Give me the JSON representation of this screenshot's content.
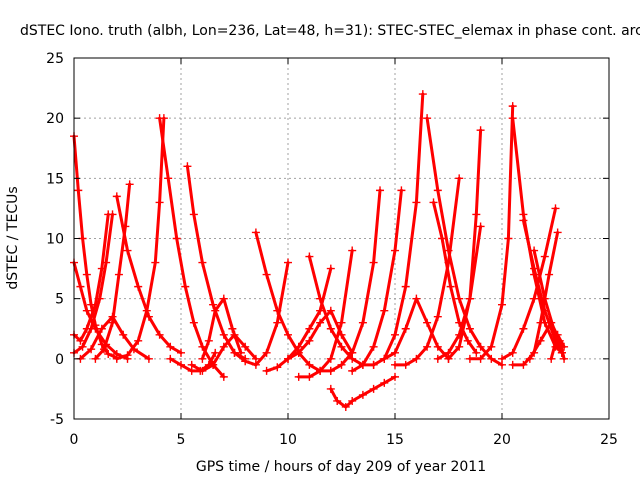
{
  "chart_data": {
    "type": "scatter",
    "title": "dSTEC Iono. truth (albh, Lon=236, Lat=48, h=31): STEC-STEC_elemax in phase cont. arc",
    "xlabel": "GPS time / hours of day 209 of year 2011",
    "ylabel": "dSTEC  / TECUs",
    "xlim": [
      0,
      25
    ],
    "ylim": [
      -5,
      25
    ],
    "xticks": [
      0,
      5,
      10,
      15,
      20,
      25
    ],
    "yticks": [
      -5,
      0,
      5,
      10,
      15,
      20,
      25
    ],
    "grid": true,
    "marker": "+",
    "color": "#ff0000",
    "series": [
      {
        "x": [
          0.0,
          0.2,
          0.4,
          0.6,
          0.8,
          1.0,
          1.3,
          1.6,
          2.0
        ],
        "y": [
          18.5,
          14.0,
          10.0,
          7.0,
          4.5,
          2.8,
          1.2,
          0.4,
          0.1
        ]
      },
      {
        "x": [
          0.0,
          0.3,
          0.6,
          1.0,
          1.5,
          2.0,
          2.5
        ],
        "y": [
          8.0,
          6.0,
          4.0,
          2.5,
          1.2,
          0.4,
          0.0
        ]
      },
      {
        "x": [
          0.0,
          0.3,
          0.6,
          1.0,
          1.3,
          1.6
        ],
        "y": [
          2.0,
          1.5,
          2.5,
          4.5,
          7.5,
          12.0
        ]
      },
      {
        "x": [
          0.0,
          0.4,
          0.8,
          1.2,
          1.5,
          1.8
        ],
        "y": [
          0.5,
          1.0,
          2.5,
          5.0,
          8.0,
          12.0
        ]
      },
      {
        "x": [
          0.3,
          0.8,
          1.3,
          1.8,
          2.3,
          2.8,
          3.5
        ],
        "y": [
          0.0,
          0.8,
          2.5,
          3.5,
          2.0,
          0.8,
          0.0
        ]
      },
      {
        "x": [
          1.0,
          1.4,
          1.8,
          2.1,
          2.4,
          2.6
        ],
        "y": [
          0.0,
          0.8,
          3.0,
          7.0,
          11.0,
          14.5
        ]
      },
      {
        "x": [
          2.0,
          2.5,
          3.0,
          3.5,
          4.0,
          4.5,
          5.0
        ],
        "y": [
          13.5,
          9.0,
          6.0,
          3.5,
          2.0,
          1.0,
          0.5
        ]
      },
      {
        "x": [
          2.0,
          2.5,
          3.0,
          3.4,
          3.8,
          4.0,
          4.2
        ],
        "y": [
          0.0,
          0.3,
          1.5,
          4.0,
          8.0,
          13.0,
          20.0
        ]
      },
      {
        "x": [
          4.0,
          4.4,
          4.8,
          5.2,
          5.6,
          6.0,
          6.5,
          7.0
        ],
        "y": [
          20.0,
          15.0,
          10.0,
          6.0,
          3.0,
          1.0,
          -0.5,
          -1.5
        ]
      },
      {
        "x": [
          4.5,
          5.0,
          5.5,
          5.9,
          6.3,
          6.6
        ],
        "y": [
          0.0,
          -0.5,
          -1.0,
          -1.0,
          -0.5,
          0.5
        ]
      },
      {
        "x": [
          5.3,
          5.6,
          6.0,
          6.5,
          7.0,
          7.5,
          8.0
        ],
        "y": [
          16.0,
          12.0,
          8.0,
          4.5,
          2.0,
          0.5,
          0.0
        ]
      },
      {
        "x": [
          5.5,
          6.0,
          6.5,
          7.0,
          7.5,
          8.0,
          8.5
        ],
        "y": [
          -0.5,
          -1.0,
          -0.5,
          1.0,
          2.0,
          1.0,
          0.0
        ]
      },
      {
        "x": [
          6.0,
          6.3,
          6.6,
          7.0,
          7.4,
          7.8
        ],
        "y": [
          0.0,
          1.5,
          4.0,
          5.0,
          2.5,
          0.5
        ]
      },
      {
        "x": [
          7.5,
          8.0,
          8.5,
          9.0,
          9.5,
          10.0
        ],
        "y": [
          0.5,
          -0.2,
          -0.5,
          0.5,
          3.0,
          8.0
        ]
      },
      {
        "x": [
          8.5,
          9.0,
          9.5,
          10.0,
          10.5,
          11.0,
          11.5,
          12.0
        ],
        "y": [
          10.5,
          7.0,
          4.0,
          2.0,
          0.5,
          -0.5,
          -1.0,
          -1.0
        ]
      },
      {
        "x": [
          9.0,
          9.5,
          10.0,
          10.5,
          11.0,
          11.5,
          12.0
        ],
        "y": [
          -1.0,
          -0.7,
          0.0,
          1.0,
          2.5,
          4.0,
          7.5
        ]
      },
      {
        "x": [
          10.0,
          10.5,
          11.0,
          11.5,
          12.0,
          12.5,
          13.0
        ],
        "y": [
          0.0,
          0.5,
          1.5,
          3.0,
          4.0,
          2.0,
          0.5
        ]
      },
      {
        "x": [
          10.5,
          11.0,
          11.5,
          12.0,
          12.5,
          13.0
        ],
        "y": [
          -1.5,
          -1.5,
          -1.0,
          0.0,
          3.0,
          9.0
        ]
      },
      {
        "x": [
          11.0,
          11.5,
          12.0,
          12.5,
          13.0,
          13.5,
          14.0
        ],
        "y": [
          8.5,
          5.0,
          2.5,
          1.0,
          0.0,
          -0.5,
          -0.5
        ]
      },
      {
        "x": [
          12.0,
          12.3,
          12.7,
          13.0,
          13.5,
          14.0,
          14.5,
          15.0
        ],
        "y": [
          -2.5,
          -3.5,
          -4.0,
          -3.5,
          -3.0,
          -2.5,
          -2.0,
          -1.5
        ]
      },
      {
        "x": [
          12.0,
          12.5,
          13.0,
          13.5,
          14.0,
          14.3
        ],
        "y": [
          -1.0,
          -0.5,
          0.5,
          3.0,
          8.0,
          14.0
        ]
      },
      {
        "x": [
          13.0,
          13.5,
          14.0,
          14.5,
          15.0,
          15.3
        ],
        "y": [
          -1.0,
          -0.5,
          1.0,
          4.0,
          9.0,
          14.0
        ]
      },
      {
        "x": [
          14.0,
          14.5,
          15.0,
          15.5,
          16.0,
          16.3
        ],
        "y": [
          -0.5,
          0.0,
          2.0,
          6.0,
          13.0,
          22.0
        ]
      },
      {
        "x": [
          14.5,
          15.0,
          15.5,
          16.0,
          16.5,
          17.0,
          17.5
        ],
        "y": [
          0.0,
          0.5,
          2.5,
          5.0,
          3.0,
          1.0,
          0.0
        ]
      },
      {
        "x": [
          15.0,
          15.5,
          16.0,
          16.5,
          17.0,
          17.5,
          18.0
        ],
        "y": [
          -0.5,
          -0.5,
          0.0,
          1.0,
          3.5,
          8.0,
          15.0
        ]
      },
      {
        "x": [
          16.5,
          17.0,
          17.5,
          18.0,
          18.5,
          19.0,
          19.5,
          20.0
        ],
        "y": [
          20.0,
          14.0,
          9.0,
          5.0,
          2.5,
          1.0,
          0.0,
          -0.5
        ]
      },
      {
        "x": [
          16.8,
          17.2,
          17.6,
          18.0,
          18.4,
          18.8
        ],
        "y": [
          13.0,
          10.0,
          6.0,
          3.0,
          1.5,
          0.5
        ]
      },
      {
        "x": [
          17.0,
          17.5,
          18.0,
          18.5,
          19.0
        ],
        "y": [
          0.0,
          0.5,
          2.0,
          5.0,
          11.0
        ]
      },
      {
        "x": [
          17.5,
          18.0,
          18.5,
          18.8,
          19.0
        ],
        "y": [
          0.0,
          1.0,
          5.0,
          12.0,
          19.0
        ]
      },
      {
        "x": [
          18.5,
          19.0,
          19.5,
          20.0,
          20.3,
          20.5
        ],
        "y": [
          0.0,
          0.0,
          1.0,
          4.5,
          10.0,
          21.0
        ]
      },
      {
        "x": [
          20.5,
          21.0,
          21.5,
          22.0,
          22.5,
          22.8
        ],
        "y": [
          20.0,
          12.0,
          7.0,
          3.0,
          1.0,
          0.5
        ]
      },
      {
        "x": [
          20.0,
          20.5,
          21.0,
          21.5,
          22.0,
          22.5
        ],
        "y": [
          0.0,
          0.5,
          2.5,
          5.0,
          8.5,
          12.5
        ]
      },
      {
        "x": [
          20.5,
          21.0,
          21.5,
          21.8,
          22.2,
          22.6
        ],
        "y": [
          -0.5,
          -0.5,
          0.5,
          3.0,
          7.0,
          10.5
        ]
      },
      {
        "x": [
          21.0,
          21.5,
          22.0,
          22.5,
          22.8
        ],
        "y": [
          11.5,
          7.5,
          4.0,
          1.5,
          0.5
        ]
      },
      {
        "x": [
          21.3,
          21.8,
          22.3,
          22.7,
          22.9
        ],
        "y": [
          0.0,
          1.5,
          3.0,
          1.5,
          0.0
        ]
      },
      {
        "x": [
          21.5,
          22.0,
          22.5,
          22.8
        ],
        "y": [
          9.0,
          5.0,
          2.0,
          0.5
        ]
      },
      {
        "x": [
          22.3,
          22.6,
          22.9
        ],
        "y": [
          0.0,
          2.0,
          1.0
        ]
      }
    ]
  }
}
